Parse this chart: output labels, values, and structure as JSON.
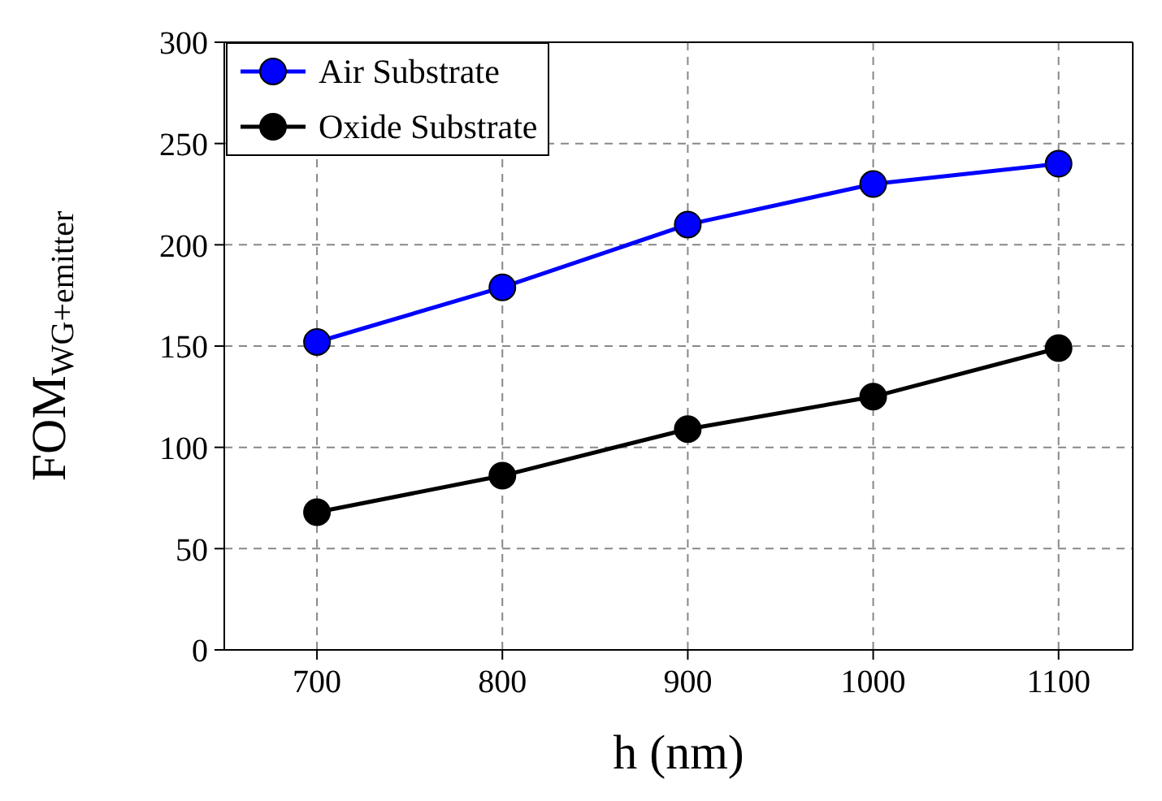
{
  "chart_data": {
    "type": "line",
    "xlabel": "h (nm)",
    "ylabel": "FOM$_{WG+emitter}$",
    "x": [
      700,
      800,
      900,
      1000,
      1100
    ],
    "series": [
      {
        "name": "Air Substrate",
        "color": "#0000ff",
        "values": [
          152,
          179,
          210,
          230,
          240
        ]
      },
      {
        "name": "Oxide Substrate",
        "color": "#000000",
        "values": [
          68,
          86,
          109,
          125,
          149
        ]
      }
    ],
    "xlim": [
      650,
      1140
    ],
    "xticks": [
      700,
      800,
      900,
      1000,
      1100
    ],
    "ylim": [
      0,
      300
    ],
    "yticks": [
      0,
      50,
      100,
      150,
      200,
      250,
      300
    ],
    "grid": true,
    "legend": "top left",
    "marker": "circle",
    "line_style": "solid"
  }
}
